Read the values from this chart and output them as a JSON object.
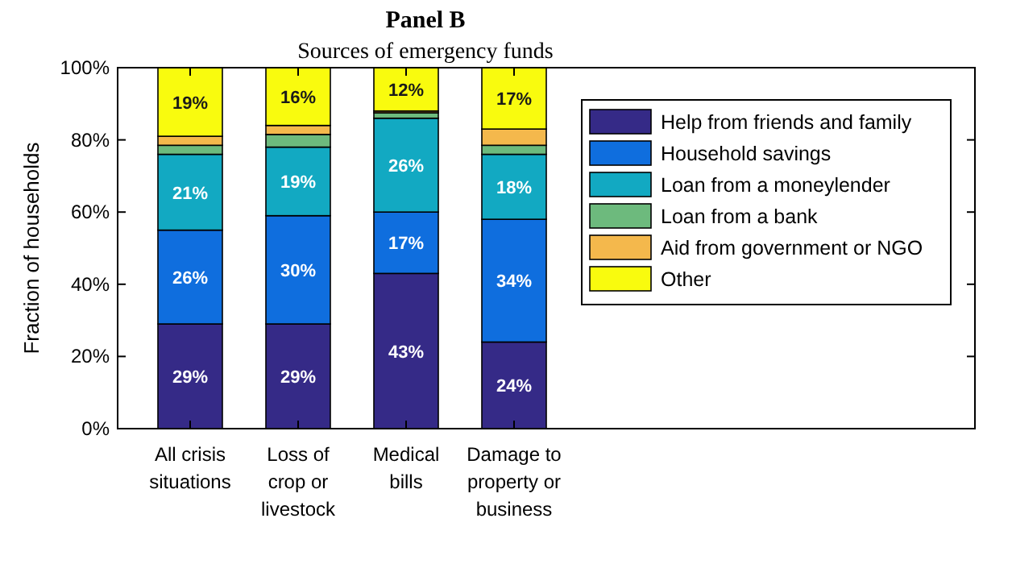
{
  "chart_data": {
    "type": "bar",
    "stacked": true,
    "title": "Panel B",
    "subtitle": "Sources of emergency funds",
    "ylabel": "Fraction of households",
    "categories": [
      "All crisis situations",
      "Loss of crop or livestock",
      "Medical bills",
      "Damage to property or business"
    ],
    "series": [
      {
        "name": "Help from friends and family",
        "color": "#352a87",
        "values": [
          29,
          29,
          43,
          24
        ],
        "value_labels": [
          "29%",
          "29%",
          "43%",
          "24%"
        ]
      },
      {
        "name": "Household savings",
        "color": "#0f6ede",
        "values": [
          26,
          30,
          17,
          34
        ],
        "value_labels": [
          "26%",
          "30%",
          "17%",
          "34%"
        ]
      },
      {
        "name": "Loan from a moneylender",
        "color": "#12a9c2",
        "values": [
          21,
          19,
          26,
          18
        ],
        "value_labels": [
          "21%",
          "19%",
          "26%",
          "18%"
        ]
      },
      {
        "name": "Loan from a bank",
        "color": "#6dba7d",
        "values": [
          2.5,
          3.5,
          1.5,
          2.5
        ]
      },
      {
        "name": "Aid from government or NGO",
        "color": "#f4b84c",
        "values": [
          2.5,
          2.5,
          0.5,
          4.5
        ]
      },
      {
        "name": "Other",
        "color": "#f9fb0e",
        "values": [
          19,
          16,
          12,
          17
        ],
        "value_labels": [
          "19%",
          "16%",
          "12%",
          "17%"
        ]
      }
    ],
    "ylim": [
      0,
      100
    ],
    "yticks": [
      {
        "value": 0,
        "label": "0%"
      },
      {
        "value": 20,
        "label": "20%"
      },
      {
        "value": 40,
        "label": "40%"
      },
      {
        "value": 60,
        "label": "60%"
      },
      {
        "value": 80,
        "label": "80%"
      },
      {
        "value": 100,
        "label": "100%"
      }
    ],
    "legend": "top right"
  }
}
